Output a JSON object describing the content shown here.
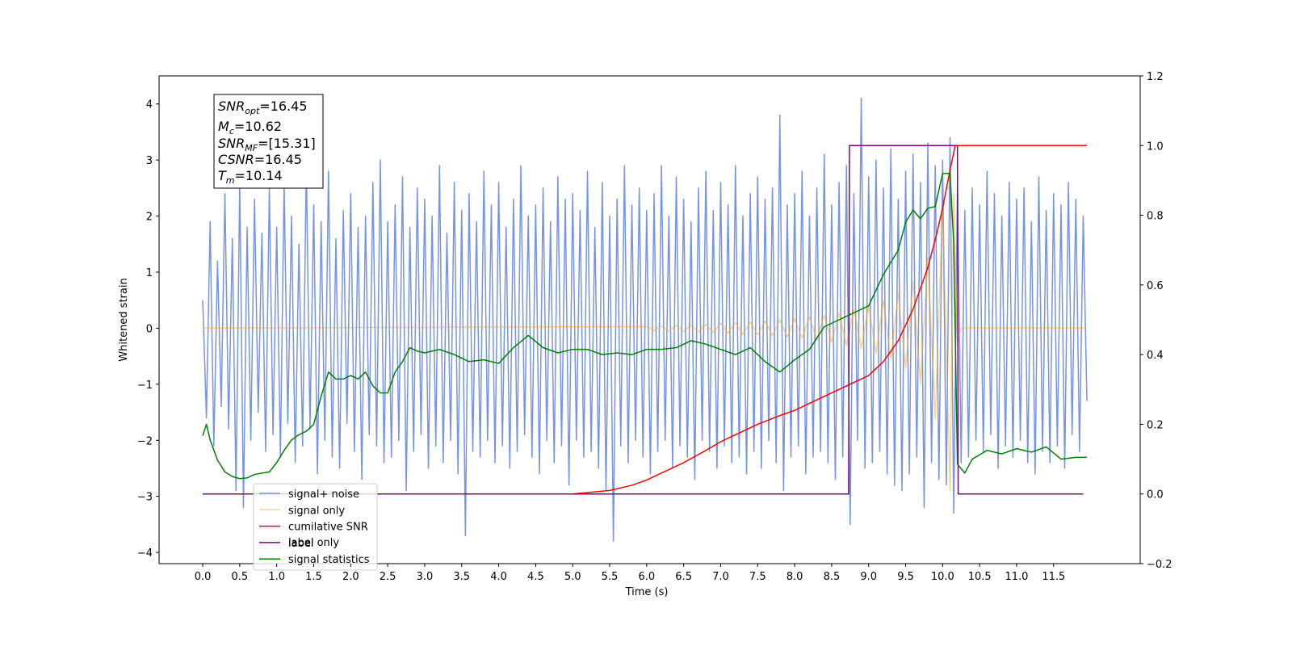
{
  "chart_data": {
    "type": "line",
    "xlabel": "Time (s)",
    "ylabel": "Whitened strain",
    "xlim": [
      -0.59,
      12.67
    ],
    "ylim": [
      -4.2,
      4.5
    ],
    "y2lim": [
      -0.2,
      1.2
    ],
    "xticks": [
      {
        "value": 0,
        "label": "0.0"
      },
      0.5,
      {
        "value": 1,
        "label": "1.0"
      },
      1.5,
      {
        "value": 2,
        "label": "2.0"
      },
      2.5,
      {
        "value": 3,
        "label": "3.0"
      },
      3.5,
      {
        "value": 4,
        "label": "4.0"
      },
      4.5,
      {
        "value": 5,
        "label": "5.0"
      },
      5.5,
      {
        "value": 6,
        "label": "6.0"
      },
      6.5,
      {
        "value": 7,
        "label": "7.0"
      },
      7.5,
      {
        "value": 8,
        "label": "8.0"
      },
      8.5,
      {
        "value": 9,
        "label": "9.0"
      },
      9.5,
      {
        "value": 10,
        "label": "10.0"
      },
      10.5,
      {
        "value": 11,
        "label": "11.0"
      },
      11.5
    ],
    "yticks": [
      {
        "value": -4,
        "label": "−4"
      },
      {
        "value": -3,
        "label": "−3"
      },
      {
        "value": -2,
        "label": "−2"
      },
      {
        "value": -1,
        "label": "−1"
      },
      0,
      1,
      2,
      3,
      4
    ],
    "y2ticks": [
      {
        "value": -0.2,
        "label": "−0.2"
      },
      {
        "value": 0,
        "label": "0.0"
      },
      0.2,
      0.4,
      0.6,
      0.8,
      {
        "value": 1,
        "label": "1.0"
      },
      1.2
    ],
    "annotations": [
      {
        "name": "SNR",
        "sub": "opt",
        "text": "=16.45"
      },
      {
        "name": "M",
        "sub": "c",
        "text": "=10.62"
      },
      {
        "name": "SNR",
        "sub": "MF",
        "text": "=[15.31]"
      },
      {
        "name": "CSNR",
        "text": "=16.45"
      },
      {
        "name": "T",
        "sub": "m",
        "text": "=10.14"
      }
    ],
    "legend_hidden": [
      "label only"
    ],
    "series": [
      {
        "name": "signal+ noise",
        "color": "#6f8de8",
        "alpha": 0.95,
        "x": [
          0,
          0.05,
          0.1,
          0.15,
          0.2,
          0.25,
          0.3,
          0.35,
          0.4,
          0.45,
          0.5,
          0.55,
          0.6,
          0.65,
          0.7,
          0.75,
          0.8,
          0.85,
          0.9,
          0.95,
          1,
          1.05,
          1.1,
          1.15,
          1.2,
          1.25,
          1.3,
          1.35,
          1.4,
          1.45,
          1.5,
          1.55,
          1.6,
          1.65,
          1.7,
          1.75,
          1.8,
          1.85,
          1.9,
          1.95,
          2,
          2.05,
          2.1,
          2.15,
          2.2,
          2.25,
          2.3,
          2.35,
          2.4,
          2.45,
          2.5,
          2.55,
          2.6,
          2.65,
          2.7,
          2.75,
          2.8,
          2.85,
          2.9,
          2.95,
          3,
          3.05,
          3.1,
          3.15,
          3.2,
          3.25,
          3.3,
          3.35,
          3.4,
          3.45,
          3.5,
          3.55,
          3.6,
          3.65,
          3.7,
          3.75,
          3.8,
          3.85,
          3.9,
          3.95,
          4,
          4.05,
          4.1,
          4.15,
          4.2,
          4.25,
          4.3,
          4.35,
          4.4,
          4.45,
          4.5,
          4.55,
          4.6,
          4.65,
          4.7,
          4.75,
          4.8,
          4.85,
          4.9,
          4.95,
          5,
          5.05,
          5.1,
          5.15,
          5.2,
          5.25,
          5.3,
          5.35,
          5.4,
          5.45,
          5.5,
          5.55,
          5.6,
          5.65,
          5.7,
          5.75,
          5.8,
          5.85,
          5.9,
          5.95,
          6,
          6.05,
          6.1,
          6.15,
          6.2,
          6.25,
          6.3,
          6.35,
          6.4,
          6.45,
          6.5,
          6.55,
          6.6,
          6.65,
          6.7,
          6.75,
          6.8,
          6.85,
          6.9,
          6.95,
          7,
          7.05,
          7.1,
          7.15,
          7.2,
          7.25,
          7.3,
          7.35,
          7.4,
          7.45,
          7.5,
          7.55,
          7.6,
          7.65,
          7.7,
          7.75,
          7.8,
          7.85,
          7.9,
          7.95,
          8,
          8.05,
          8.1,
          8.15,
          8.2,
          8.25,
          8.3,
          8.35,
          8.4,
          8.45,
          8.5,
          8.55,
          8.6,
          8.65,
          8.7,
          8.75,
          8.8,
          8.85,
          8.9,
          8.95,
          9,
          9.05,
          9.1,
          9.15,
          9.2,
          9.25,
          9.3,
          9.35,
          9.4,
          9.45,
          9.5,
          9.55,
          9.6,
          9.65,
          9.7,
          9.75,
          9.8,
          9.85,
          9.9,
          9.95,
          10,
          10.05,
          10.1,
          10.15,
          10.2,
          10.25,
          10.3,
          10.35,
          10.4,
          10.45,
          10.5,
          10.55,
          10.6,
          10.65,
          10.7,
          10.75,
          10.8,
          10.85,
          10.9,
          10.95,
          11,
          11.05,
          11.1,
          11.15,
          11.2,
          11.25,
          11.3,
          11.35,
          11.4,
          11.45,
          11.5,
          11.55,
          11.6,
          11.65,
          11.7,
          11.75,
          11.8,
          11.85,
          11.9,
          11.95
        ],
        "values": [
          0.5,
          -1.6,
          1.9,
          -2.1,
          1.2,
          -1.4,
          2.4,
          -1.8,
          1.6,
          -2.9,
          2.6,
          -3.2,
          1.8,
          -2.0,
          2.3,
          -1.5,
          1.7,
          -2.2,
          2.5,
          -1.9,
          1.8,
          -2.3,
          2.6,
          -1.7,
          2.0,
          -2.4,
          1.5,
          -2.1,
          2.9,
          -1.8,
          2.2,
          -2.6,
          1.9,
          -2.0,
          2.8,
          -2.3,
          1.6,
          -2.5,
          2.1,
          -1.7,
          2.4,
          -2.2,
          1.8,
          -2.7,
          2.0,
          -1.9,
          2.6,
          -2.1,
          3.0,
          -2.4,
          1.9,
          -2.3,
          2.2,
          -2.0,
          2.7,
          -2.9,
          1.8,
          -2.2,
          2.5,
          -1.9,
          2.3,
          -2.5,
          2.0,
          -2.1,
          2.9,
          -2.4,
          1.7,
          -2.0,
          2.6,
          -2.6,
          2.1,
          -3.7,
          2.4,
          -2.2,
          1.9,
          -2.3,
          2.8,
          -2.0,
          2.2,
          -2.4,
          2.6,
          -2.1,
          1.8,
          -2.5,
          2.3,
          -2.2,
          2.9,
          -1.9,
          2.0,
          -2.3,
          2.2,
          -2.6,
          2.5,
          -2.0,
          1.9,
          -2.4,
          2.7,
          -2.1,
          2.3,
          -2.8,
          2.4,
          -2.0,
          2.1,
          -2.3,
          2.8,
          -2.2,
          1.8,
          -2.5,
          2.6,
          -2.9,
          2.0,
          -3.8,
          2.3,
          -2.1,
          2.9,
          -2.4,
          2.2,
          -2.0,
          2.5,
          -2.3,
          2.1,
          -2.6,
          2.4,
          -2.2,
          2.9,
          -2.0,
          2.0,
          -2.5,
          2.7,
          -2.1,
          2.3,
          -2.3,
          1.9,
          -2.7,
          2.5,
          -2.0,
          2.8,
          -2.2,
          2.1,
          -2.5,
          2.6,
          -2.1,
          2.2,
          -2.4,
          2.9,
          -2.3,
          2.0,
          -2.6,
          2.4,
          -2.2,
          2.7,
          -2.5,
          2.3,
          -2.0,
          2.5,
          -2.4,
          3.8,
          -2.9,
          2.2,
          -2.3,
          2.4,
          -2.1,
          2.8,
          -2.6,
          2.0,
          -2.3,
          2.5,
          -2.2,
          3.1,
          -2.4,
          2.2,
          -2.7,
          2.6,
          -2.3,
          2.9,
          -3.5,
          2.4,
          -2.0,
          4.1,
          -2.5,
          2.7,
          -2.4,
          3.0,
          -2.2,
          2.5,
          -2.6,
          3.2,
          -2.8,
          2.3,
          -2.9,
          2.8,
          -2.6,
          3.1,
          -2.3,
          2.6,
          -3.2,
          3.3,
          -2.4,
          2.9,
          -2.7,
          3.0,
          -2.8,
          3.4,
          -3.3,
          2.6,
          -2.4,
          2.1,
          -2.3,
          2.5,
          -2.0,
          2.2,
          -2.2,
          2.8,
          -1.9,
          2.4,
          -2.5,
          2.0,
          -2.1,
          2.6,
          -2.3,
          2.3,
          -2.0,
          2.5,
          -2.4,
          1.9,
          -2.6,
          2.7,
          -2.2,
          2.1,
          -2.4,
          2.4,
          -2.1,
          2.2,
          -2.5,
          2.6,
          -1.9,
          2.3,
          -2.2,
          2.0,
          -1.3
        ]
      },
      {
        "name": "signal only",
        "color": "#ffa500",
        "alpha": 0.5,
        "x": [
          0,
          6.0,
          6.1,
          6.2,
          6.3,
          6.4,
          6.5,
          6.6,
          6.7,
          6.8,
          6.9,
          7.0,
          7.1,
          7.2,
          7.3,
          7.4,
          7.5,
          7.6,
          7.7,
          7.8,
          7.9,
          8.0,
          8.1,
          8.2,
          8.3,
          8.4,
          8.5,
          8.6,
          8.7,
          8.8,
          8.9,
          9.0,
          9.1,
          9.2,
          9.3,
          9.4,
          9.5,
          9.6,
          9.7,
          9.8,
          9.9,
          10.0,
          10.1,
          10.15,
          10.2,
          10.25,
          11.95
        ],
        "values": [
          0,
          0.03,
          -0.04,
          0.04,
          -0.05,
          0.05,
          -0.06,
          0.06,
          -0.07,
          0.07,
          -0.08,
          0.09,
          -0.09,
          0.1,
          -0.11,
          0.11,
          -0.12,
          0.13,
          -0.14,
          0.15,
          -0.16,
          0.17,
          -0.18,
          0.2,
          -0.21,
          0.23,
          -0.25,
          0.27,
          -0.3,
          0.33,
          -0.36,
          0.4,
          -0.45,
          0.5,
          -0.56,
          0.63,
          -0.72,
          0.84,
          -1.0,
          1.25,
          -1.6,
          2.2,
          -2.9,
          2.4,
          -0.3,
          0,
          0
        ]
      },
      {
        "name": "cumilative SNR",
        "color": "#ff0000",
        "axis": "y2",
        "x": [
          0,
          5.0,
          5.5,
          5.8,
          6.0,
          6.2,
          6.5,
          6.8,
          7.0,
          7.3,
          7.5,
          7.8,
          8.0,
          8.3,
          8.5,
          8.8,
          9.0,
          9.2,
          9.4,
          9.6,
          9.8,
          9.9,
          10.0,
          10.1,
          10.17,
          11.95
        ],
        "values": [
          0,
          0,
          0.01,
          0.025,
          0.04,
          0.06,
          0.09,
          0.125,
          0.15,
          0.18,
          0.2,
          0.225,
          0.24,
          0.27,
          0.29,
          0.32,
          0.34,
          0.38,
          0.44,
          0.53,
          0.65,
          0.73,
          0.82,
          0.93,
          1.0,
          1.0
        ]
      },
      {
        "name": "label",
        "color": "#800080",
        "axis": "y2",
        "x": [
          0,
          8.73,
          8.74,
          10.2,
          10.21,
          11.9
        ],
        "values": [
          0,
          0,
          1,
          1,
          0,
          0
        ]
      },
      {
        "name": "signal statistics",
        "color": "#008000",
        "axis": "y2",
        "x": [
          0,
          0.05,
          0.1,
          0.2,
          0.3,
          0.4,
          0.5,
          0.6,
          0.7,
          0.8,
          0.9,
          1.0,
          1.1,
          1.2,
          1.3,
          1.4,
          1.5,
          1.6,
          1.7,
          1.8,
          1.9,
          2.0,
          2.1,
          2.2,
          2.3,
          2.4,
          2.5,
          2.6,
          2.7,
          2.8,
          2.9,
          3.0,
          3.2,
          3.4,
          3.6,
          3.8,
          4.0,
          4.2,
          4.4,
          4.6,
          4.8,
          5.0,
          5.2,
          5.4,
          5.6,
          5.8,
          6.0,
          6.2,
          6.4,
          6.6,
          6.8,
          7.0,
          7.2,
          7.4,
          7.6,
          7.8,
          8.0,
          8.2,
          8.4,
          8.6,
          8.7,
          8.8,
          9.0,
          9.2,
          9.4,
          9.5,
          9.6,
          9.7,
          9.8,
          9.9,
          10.0,
          10.1,
          10.15,
          10.2,
          10.3,
          10.4,
          10.6,
          10.8,
          11.0,
          11.2,
          11.4,
          11.6,
          11.8,
          11.95
        ],
        "values": [
          0.167,
          0.2,
          0.155,
          0.097,
          0.063,
          0.05,
          0.044,
          0.046,
          0.056,
          0.06,
          0.063,
          0.09,
          0.125,
          0.155,
          0.17,
          0.18,
          0.2,
          0.28,
          0.35,
          0.33,
          0.33,
          0.34,
          0.33,
          0.35,
          0.31,
          0.29,
          0.29,
          0.35,
          0.38,
          0.42,
          0.41,
          0.405,
          0.415,
          0.4,
          0.38,
          0.385,
          0.375,
          0.42,
          0.455,
          0.42,
          0.405,
          0.415,
          0.415,
          0.4,
          0.405,
          0.4,
          0.415,
          0.415,
          0.42,
          0.44,
          0.43,
          0.415,
          0.4,
          0.42,
          0.38,
          0.35,
          0.385,
          0.415,
          0.48,
          0.5,
          0.51,
          0.52,
          0.54,
          0.63,
          0.7,
          0.78,
          0.815,
          0.79,
          0.82,
          0.825,
          0.92,
          0.92,
          0.72,
          0.085,
          0.06,
          0.1,
          0.125,
          0.115,
          0.13,
          0.12,
          0.135,
          0.1,
          0.105,
          0.105
        ]
      }
    ]
  }
}
